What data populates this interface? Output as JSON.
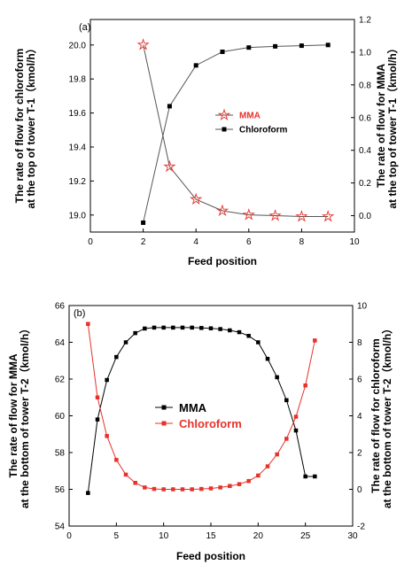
{
  "chart_data": [
    {
      "type": "line",
      "panel_label": "(a)",
      "xlabel": "Feed position",
      "ylabel": "The rate of flow for chloroform\nat the top of tower T-1（kmol/h）",
      "y2label": "The rate of flow for MMA\nat the top of tower T-1（kmol/h）",
      "xlim": [
        0,
        10
      ],
      "ylim": [
        18.9,
        20.15
      ],
      "y2lim": [
        -0.1,
        1.2
      ],
      "x_ticks": [
        "0",
        "2",
        "4",
        "6",
        "8",
        "10"
      ],
      "y_ticks": [
        "19.0",
        "19.2",
        "19.4",
        "19.6",
        "19.8",
        "20.0"
      ],
      "y2_ticks": [
        "0.0",
        "0.2",
        "0.4",
        "0.6",
        "0.8",
        "1.0",
        "1.2"
      ],
      "legend_position": "center",
      "series": [
        {
          "name": "MMA",
          "axis": "right",
          "color": "#e8312a",
          "line_color": "#555555",
          "marker": "star",
          "x": [
            2,
            3,
            4,
            5,
            6,
            7,
            8,
            9
          ],
          "y": [
            1.045,
            0.3,
            0.1,
            0.03,
            0.005,
            0.0,
            -0.005,
            -0.005
          ]
        },
        {
          "name": "Chloroform",
          "axis": "left",
          "color": "#000000",
          "line_color": "#555555",
          "marker": "square",
          "x": [
            2,
            3,
            4,
            5,
            6,
            7,
            8,
            9
          ],
          "y": [
            18.955,
            19.64,
            19.88,
            19.96,
            19.985,
            19.992,
            19.996,
            20.0
          ]
        }
      ]
    },
    {
      "type": "line",
      "panel_label": "(b)",
      "xlabel": "Feed position",
      "ylabel": "The rate of flow for MMA\nat the bottom of tower T-2（kmol/h）",
      "y2label": "The rate of flow for chloroform\nat the bottom of tower T-2（kmol/h）",
      "xlim": [
        0,
        30
      ],
      "ylim": [
        54,
        66
      ],
      "y2lim": [
        -2,
        10
      ],
      "x_ticks": [
        "0",
        "5",
        "10",
        "15",
        "20",
        "25",
        "30"
      ],
      "y_ticks": [
        "54",
        "56",
        "58",
        "60",
        "62",
        "64",
        "66"
      ],
      "y2_ticks": [
        "-2",
        "0",
        "2",
        "4",
        "6",
        "8",
        "10"
      ],
      "legend_position": "center",
      "series": [
        {
          "name": "MMA",
          "axis": "left",
          "color": "#000000",
          "line_color": "#000000",
          "marker": "square",
          "x": [
            2,
            3,
            4,
            5,
            6,
            7,
            8,
            9,
            10,
            11,
            12,
            13,
            14,
            15,
            16,
            17,
            18,
            19,
            20,
            21,
            22,
            23,
            24,
            25,
            26
          ],
          "y": [
            55.8,
            59.8,
            61.95,
            63.2,
            64.0,
            64.5,
            64.75,
            64.8,
            64.8,
            64.8,
            64.8,
            64.8,
            64.78,
            64.76,
            64.72,
            64.65,
            64.55,
            64.35,
            64.0,
            63.1,
            62.1,
            60.85,
            59.2,
            56.7,
            56.7
          ]
        },
        {
          "name": "Chloroform",
          "axis": "right",
          "color": "#e8312a",
          "line_color": "#e8312a",
          "marker": "square",
          "x": [
            2,
            3,
            4,
            5,
            6,
            7,
            8,
            9,
            10,
            11,
            12,
            13,
            14,
            15,
            16,
            17,
            18,
            19,
            20,
            21,
            22,
            23,
            24,
            25,
            26
          ],
          "y": [
            9.0,
            5.0,
            2.9,
            1.6,
            0.8,
            0.35,
            0.1,
            0.02,
            0.0,
            0.0,
            0.0,
            0.0,
            0.02,
            0.05,
            0.1,
            0.18,
            0.28,
            0.45,
            0.75,
            1.25,
            1.9,
            2.75,
            3.95,
            5.65,
            8.1
          ]
        }
      ]
    }
  ]
}
